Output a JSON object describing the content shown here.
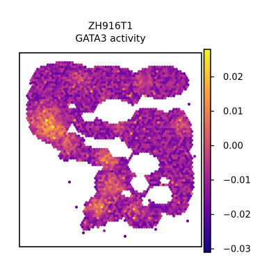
{
  "chart_data": {
    "type": "heatmap",
    "subtype": "spatial-spot-plot",
    "title_line1": "ZH916T1",
    "title_line2": "GATA3 activity",
    "xlabel": "",
    "ylabel": "",
    "axes_ticks": "none",
    "colormap": "plasma",
    "colormap_stops": [
      "#0d0887",
      "#6a00a8",
      "#b12a90",
      "#e16462",
      "#fca636",
      "#f0f921"
    ],
    "colorbar": {
      "position": "right",
      "vmin": -0.031,
      "vmax": 0.028,
      "ticks": [
        0.02,
        0.01,
        0.0,
        -0.01,
        -0.02,
        -0.03
      ],
      "tick_labels": [
        "0.02",
        "0.01",
        "0.00",
        "−0.01",
        "−0.02",
        "−0.03"
      ]
    },
    "value_summary": {
      "typical_range": [
        -0.03,
        0.028
      ],
      "dominant_level": "low (purple, about −0.01 to −0.02)",
      "high_value_hotspots": [
        "left lobe",
        "lower-middle region",
        "bottom-left fragments"
      ]
    }
  }
}
